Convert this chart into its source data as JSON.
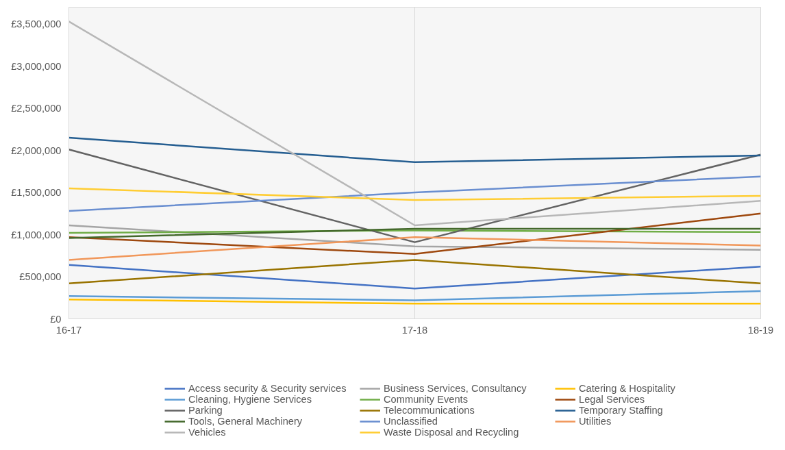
{
  "chart_data": {
    "type": "line",
    "categories": [
      "16-17",
      "17-18",
      "18-19"
    ],
    "ylim": [
      0,
      3700000
    ],
    "yticks": [
      {
        "value": 0,
        "label": "£0"
      },
      {
        "value": 500000,
        "label": "£500,000"
      },
      {
        "value": 1000000,
        "label": "£1,000,000"
      },
      {
        "value": 1500000,
        "label": "£1,500,000"
      },
      {
        "value": 2000000,
        "label": "£2,000,000"
      },
      {
        "value": 2500000,
        "label": "£2,500,000"
      },
      {
        "value": 3000000,
        "label": "£3,000,000"
      },
      {
        "value": 3500000,
        "label": "£3,500,000"
      }
    ],
    "grid": "x",
    "legend": "bottom",
    "marker": "none",
    "line_style": "solid",
    "series": [
      {
        "name": "Access security & Security services",
        "color": "#4472c4",
        "values": [
          640000,
          360000,
          620000
        ]
      },
      {
        "name": "Business Services, Consultancy",
        "color": "#a5a5a5",
        "values": [
          1110000,
          860000,
          820000
        ]
      },
      {
        "name": "Catering & Hospitality",
        "color": "#ffc000",
        "values": [
          230000,
          180000,
          180000
        ]
      },
      {
        "name": "Cleaning, Hygiene Services",
        "color": "#5b9bd5",
        "values": [
          270000,
          220000,
          330000
        ]
      },
      {
        "name": "Community Events",
        "color": "#70ad47",
        "values": [
          1020000,
          1050000,
          1030000
        ]
      },
      {
        "name": "Legal Services",
        "color": "#9e480e",
        "values": [
          970000,
          770000,
          1250000
        ]
      },
      {
        "name": "Parking",
        "color": "#636363",
        "values": [
          2010000,
          910000,
          1950000
        ]
      },
      {
        "name": "Telecommunications",
        "color": "#997300",
        "values": [
          420000,
          700000,
          420000
        ]
      },
      {
        "name": "Temporary Staffing",
        "color": "#255e91",
        "values": [
          2150000,
          1860000,
          1940000
        ]
      },
      {
        "name": "Tools, General Machinery",
        "color": "#43682b",
        "values": [
          960000,
          1070000,
          1070000
        ]
      },
      {
        "name": "Unclassified",
        "color": "#698ed0",
        "values": [
          1280000,
          1500000,
          1690000
        ]
      },
      {
        "name": "Utilities",
        "color": "#f1975a",
        "values": [
          700000,
          970000,
          870000
        ]
      },
      {
        "name": "Vehicles",
        "color": "#b7b7b7",
        "values": [
          3530000,
          1110000,
          1400000
        ]
      },
      {
        "name": "Waste Disposal and Recycling",
        "color": "#ffcd33",
        "values": [
          1550000,
          1410000,
          1460000
        ]
      }
    ]
  }
}
